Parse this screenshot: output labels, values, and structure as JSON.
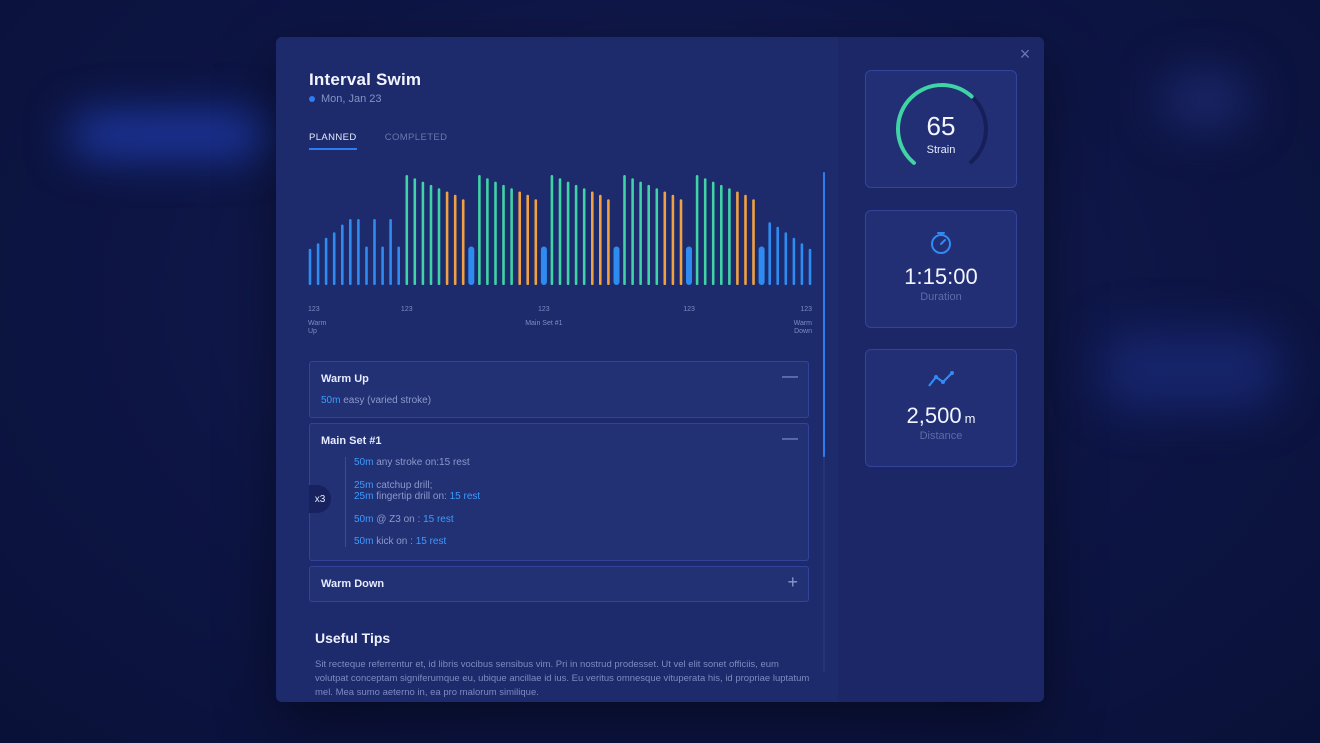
{
  "workout": {
    "title": "Interval Swim",
    "date": "Mon, Jan 23"
  },
  "tabs": [
    {
      "label": "PLANNED",
      "active": true
    },
    {
      "label": "COMPLETED",
      "active": false
    }
  ],
  "chart_data": {
    "type": "bar",
    "colors": {
      "blue": "#2e8cf0",
      "green": "#3fd3a5",
      "orange": "#f0a142"
    },
    "values": [
      {
        "v": 33,
        "c": "blue"
      },
      {
        "v": 38,
        "c": "blue"
      },
      {
        "v": 43,
        "c": "blue"
      },
      {
        "v": 48,
        "c": "blue"
      },
      {
        "v": 55,
        "c": "blue"
      },
      {
        "v": 60,
        "c": "blue"
      },
      {
        "v": 60,
        "c": "blue"
      },
      {
        "v": 35,
        "c": "blue"
      },
      {
        "v": 60,
        "c": "blue"
      },
      {
        "v": 35,
        "c": "blue"
      },
      {
        "v": 60,
        "c": "blue"
      },
      {
        "v": 35,
        "c": "blue"
      },
      {
        "v": 100,
        "c": "green"
      },
      {
        "v": 97,
        "c": "green"
      },
      {
        "v": 94,
        "c": "green"
      },
      {
        "v": 91,
        "c": "green"
      },
      {
        "v": 88,
        "c": "green"
      },
      {
        "v": 85,
        "c": "orange"
      },
      {
        "v": 82,
        "c": "orange"
      },
      {
        "v": 78,
        "c": "orange"
      },
      {
        "v": 35,
        "c": "blue",
        "wide": true
      },
      {
        "v": 100,
        "c": "green"
      },
      {
        "v": 97,
        "c": "green"
      },
      {
        "v": 94,
        "c": "green"
      },
      {
        "v": 91,
        "c": "green"
      },
      {
        "v": 88,
        "c": "green"
      },
      {
        "v": 85,
        "c": "orange"
      },
      {
        "v": 82,
        "c": "orange"
      },
      {
        "v": 78,
        "c": "orange"
      },
      {
        "v": 35,
        "c": "blue",
        "wide": true
      },
      {
        "v": 100,
        "c": "green"
      },
      {
        "v": 97,
        "c": "green"
      },
      {
        "v": 94,
        "c": "green"
      },
      {
        "v": 91,
        "c": "green"
      },
      {
        "v": 88,
        "c": "green"
      },
      {
        "v": 85,
        "c": "orange"
      },
      {
        "v": 82,
        "c": "orange"
      },
      {
        "v": 78,
        "c": "orange"
      },
      {
        "v": 35,
        "c": "blue",
        "wide": true
      },
      {
        "v": 100,
        "c": "green"
      },
      {
        "v": 97,
        "c": "green"
      },
      {
        "v": 94,
        "c": "green"
      },
      {
        "v": 91,
        "c": "green"
      },
      {
        "v": 88,
        "c": "green"
      },
      {
        "v": 85,
        "c": "orange"
      },
      {
        "v": 82,
        "c": "orange"
      },
      {
        "v": 78,
        "c": "orange"
      },
      {
        "v": 35,
        "c": "blue",
        "wide": true
      },
      {
        "v": 100,
        "c": "green"
      },
      {
        "v": 97,
        "c": "green"
      },
      {
        "v": 94,
        "c": "green"
      },
      {
        "v": 91,
        "c": "green"
      },
      {
        "v": 88,
        "c": "green"
      },
      {
        "v": 85,
        "c": "orange"
      },
      {
        "v": 82,
        "c": "orange"
      },
      {
        "v": 78,
        "c": "orange"
      },
      {
        "v": 35,
        "c": "blue",
        "wide": true
      },
      {
        "v": 57,
        "c": "blue"
      },
      {
        "v": 53,
        "c": "blue"
      },
      {
        "v": 48,
        "c": "blue"
      },
      {
        "v": 43,
        "c": "blue"
      },
      {
        "v": 38,
        "c": "blue"
      },
      {
        "v": 33,
        "c": "blue"
      }
    ],
    "ylim": [
      0,
      100
    ],
    "ticks": [
      {
        "label": "123",
        "sub": [
          "Warm",
          "Up"
        ],
        "at": 0
      },
      {
        "label": "123",
        "sub": [],
        "at": 12
      },
      {
        "label": "123",
        "sub": [
          "Main Set #1"
        ],
        "at": 29
      },
      {
        "label": "123",
        "sub": [],
        "at": 47
      },
      {
        "label": "123",
        "sub": [
          "Warm",
          "Down"
        ],
        "at": 62
      }
    ]
  },
  "sections": [
    {
      "title": "Warm Up",
      "toggle": "—",
      "lines": [
        {
          "hl": "50m",
          "text": " easy (varied stroke)"
        }
      ]
    },
    {
      "title": "Main Set #1",
      "toggle": "—",
      "repeat": "x3",
      "lines": [
        {
          "hl": "50m",
          "text": " any stroke on:15 rest"
        },
        {
          "hl": "25m",
          "text": " catchup drill;"
        },
        {
          "hl": "25m",
          "text": " fingertip drill on: ",
          "hl2": "15 rest"
        },
        {
          "hl": "50m",
          "text": " @ Z3 on : ",
          "hl2": "15 rest"
        },
        {
          "hl": "50m",
          "text": " kick on : ",
          "hl2": "15 rest"
        }
      ]
    },
    {
      "title": "Warm Down",
      "toggle": "+"
    }
  ],
  "tips": {
    "title": "Useful Tips",
    "body": "Sit recteque referrentur et, id libris vocibus sensibus vim. Pri in nostrud prodesset. Ut vel elit sonet officiis, eum volutpat conceptam signiferumque eu, ubique ancillae id ius. Eu veritus omnesque vituperata his, id propriae luptatum mel. Mea sumo aeterno in, ea pro malorum similique."
  },
  "stats": {
    "strain": {
      "value": "65",
      "label": "Strain",
      "level": 0.65,
      "icon": "gauge-icon"
    },
    "duration": {
      "value": "1:15:00",
      "label": "Duration",
      "icon": "stopwatch-icon"
    },
    "distance": {
      "value": "2,500",
      "unit": "m",
      "label": "Distance",
      "icon": "trend-line-icon"
    }
  },
  "colors": {
    "accent": "#2f7bf0",
    "highlight": "#3d9bff",
    "gauge": "#3fd3a5"
  }
}
